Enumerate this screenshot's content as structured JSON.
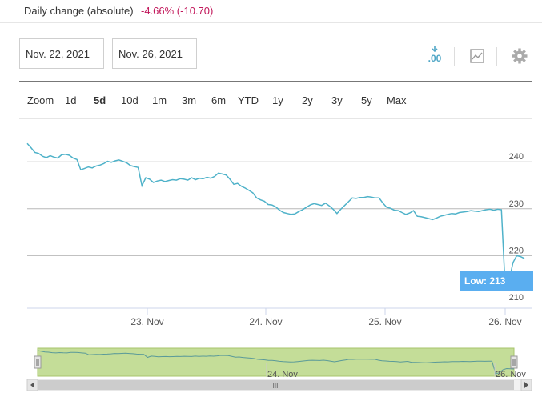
{
  "header": {
    "daily_change_label": "Daily change (absolute)",
    "daily_change_value": "-4.66% (-10.70)",
    "negative_color": "#c2185b"
  },
  "range": {
    "from": "Nov. 22, 2021",
    "to": "Nov. 26, 2021"
  },
  "toolbar": {
    "icons": [
      "download-csv-icon",
      "chart-type-icon",
      "settings-gear-icon"
    ],
    "csv_glyph": ".00"
  },
  "zoom": {
    "label": "Zoom",
    "options": [
      "1d",
      "5d",
      "10d",
      "1m",
      "3m",
      "6m",
      "YTD",
      "1y",
      "2y",
      "3y",
      "5y",
      "Max"
    ],
    "active": "5d"
  },
  "navigator": {
    "x_labels": [
      "24. Nov",
      "26. Nov"
    ],
    "scrollbar_grip": "III"
  },
  "chart_data": {
    "type": "line",
    "title": "",
    "xlabel": "",
    "ylabel": "",
    "x_labels": [
      "23. Nov",
      "24. Nov",
      "25. Nov",
      "26. Nov"
    ],
    "y_ticks": [
      210,
      220,
      230,
      240
    ],
    "ylim": [
      208,
      246
    ],
    "grid": true,
    "line_color": "#4fb2c9",
    "low_annotation": "Low: 213",
    "low_value": 213,
    "series": [
      {
        "values": [
          243.9,
          243.0,
          242.0,
          241.8,
          241.2,
          240.9,
          241.3,
          241.0,
          240.8,
          241.5,
          241.6,
          241.4,
          240.8,
          240.5,
          238.3,
          238.6,
          238.9,
          238.7,
          239.1,
          239.3,
          239.6,
          240.1,
          239.9,
          240.2,
          240.4,
          240.1,
          239.8,
          239.2,
          239.0,
          238.8,
          234.9,
          236.6,
          236.3,
          235.6,
          235.9,
          236.1,
          235.8,
          236.0,
          236.2,
          236.1,
          236.4,
          236.3,
          236.1,
          236.6,
          236.2,
          236.5,
          236.4,
          236.7,
          236.5,
          236.9,
          237.6,
          237.4,
          237.2,
          236.3,
          235.2,
          235.4,
          234.8,
          234.4,
          233.9,
          233.4,
          232.3,
          231.9,
          231.6,
          230.9,
          230.8,
          230.4,
          229.7,
          229.2,
          229.0,
          228.8,
          228.9,
          229.4,
          229.8,
          230.3,
          230.8,
          231.1,
          230.9,
          230.7,
          231.2,
          230.6,
          229.9,
          229.0,
          229.9,
          230.7,
          231.5,
          232.3,
          232.2,
          232.4,
          232.4,
          232.6,
          232.5,
          232.3,
          232.3,
          231.2,
          230.3,
          230.1,
          229.7,
          229.6,
          229.2,
          228.8,
          229.1,
          229.6,
          228.4,
          228.3,
          228.1,
          227.9,
          227.7,
          228.0,
          228.4,
          228.6,
          228.8,
          229.0,
          228.9,
          229.2,
          229.3,
          229.4,
          229.6,
          229.5,
          229.4,
          229.6,
          229.8,
          229.9,
          229.7,
          229.9,
          229.8,
          213.0,
          214.6,
          218.5,
          220.0,
          219.8,
          219.4
        ]
      }
    ]
  }
}
